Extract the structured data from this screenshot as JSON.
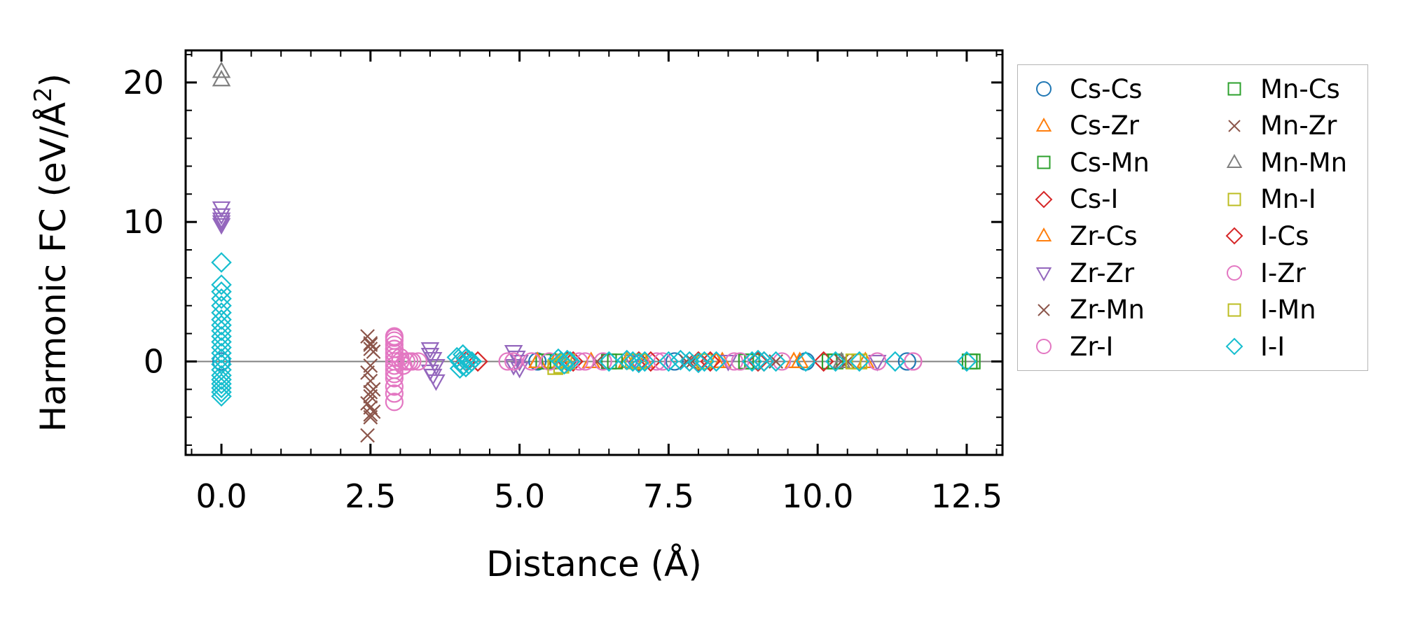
{
  "chart_data": {
    "type": "scatter",
    "title": "",
    "xlabel": "Distance (Å)",
    "ylabel": "Harmonic FC (eV/Å²)",
    "ylabel_main": "Harmonic FC (eV/Å",
    "ylabel_sup": "2",
    "ylabel_end": ")",
    "xlim": [
      -0.6,
      13.1
    ],
    "ylim": [
      -6.7,
      22.3
    ],
    "x_ticks": [
      0.0,
      2.5,
      5.0,
      7.5,
      10.0,
      12.5
    ],
    "x_tick_labels": [
      "0.0",
      "2.5",
      "5.0",
      "7.5",
      "10.0",
      "12.5"
    ],
    "y_ticks": [
      0,
      10,
      20
    ],
    "y_tick_labels": [
      "0",
      "10",
      "20"
    ],
    "zero_line": 0,
    "legend_position": "outside right",
    "series": [
      {
        "name": "Cs-Cs",
        "marker": "circle",
        "color": "#1f77b4",
        "x": [
          0.0,
          5.3,
          7.6,
          9.8,
          11.5
        ],
        "y": [
          0.0,
          0.0,
          0.0,
          0.0,
          0.0
        ]
      },
      {
        "name": "Cs-Zr",
        "marker": "triangle-up",
        "color": "#ff7f0e",
        "x": [
          5.3,
          5.6,
          6.2,
          7.1,
          8.4,
          9.6,
          10.8
        ],
        "y": [
          0.0,
          0.0,
          0.0,
          0.0,
          0.0,
          0.0,
          0.0
        ]
      },
      {
        "name": "Cs-Mn",
        "marker": "square",
        "color": "#2ca02c",
        "x": [
          5.4,
          6.5,
          8.9,
          10.2,
          12.6
        ],
        "y": [
          0.0,
          0.0,
          0.0,
          0.0,
          0.0
        ]
      },
      {
        "name": "Cs-I",
        "marker": "diamond",
        "color": "#d62728",
        "x": [
          4.0,
          4.3,
          5.9,
          7.0,
          8.0,
          9.0,
          10.1
        ],
        "y": [
          0.0,
          0.0,
          0.0,
          0.0,
          0.0,
          0.0,
          0.0
        ]
      },
      {
        "name": "Zr-Cs",
        "marker": "triangle-up",
        "color": "#ff7f0e",
        "x": [
          5.3,
          5.7,
          6.8,
          8.3,
          9.7
        ],
        "y": [
          0.0,
          0.0,
          0.0,
          0.0,
          0.0
        ]
      },
      {
        "name": "Zr-Zr",
        "marker": "triangle-down",
        "color": "#9467bd",
        "x": [
          0.0,
          0.0,
          0.0,
          0.0,
          0.0,
          3.5,
          3.5,
          3.55,
          3.6,
          3.5,
          3.55,
          3.6,
          4.9,
          4.95,
          5.0,
          4.9,
          5.0,
          6.9,
          8.5,
          11.0
        ],
        "y": [
          11.0,
          10.5,
          10.2,
          10.0,
          9.8,
          0.9,
          0.5,
          0.2,
          -0.3,
          -0.7,
          -1.0,
          -1.4,
          0.7,
          0.3,
          0.0,
          -0.3,
          -0.5,
          0.0,
          0.0,
          0.0
        ]
      },
      {
        "name": "Zr-Mn",
        "marker": "x",
        "color": "#8c564b",
        "x": [
          2.45,
          2.5,
          2.55,
          2.5,
          2.45,
          2.5,
          2.55,
          2.5,
          2.45,
          2.5,
          2.55,
          2.5,
          2.45,
          2.5,
          6.3,
          7.9,
          10.4
        ],
        "y": [
          1.8,
          1.2,
          0.7,
          -0.3,
          -0.8,
          -1.4,
          -2.0,
          -2.5,
          -3.0,
          -3.3,
          -3.6,
          -4.0,
          -5.3,
          0.9,
          0.0,
          0.0,
          0.0
        ]
      },
      {
        "name": "Zr-I",
        "marker": "circle",
        "color": "#e377c2",
        "x": [
          2.9,
          2.9,
          2.9,
          2.9,
          2.9,
          2.9,
          2.9,
          2.9,
          2.9,
          2.9,
          2.9,
          2.9,
          3.0,
          3.1,
          3.2,
          3.3,
          4.8,
          5.2,
          6.0,
          6.4,
          7.3,
          8.6,
          9.4,
          11.0,
          11.6
        ],
        "y": [
          1.8,
          1.5,
          1.2,
          0.9,
          0.6,
          0.3,
          0.0,
          -0.3,
          -0.6,
          -1.2,
          -1.8,
          -2.9,
          0.0,
          0.0,
          0.0,
          0.0,
          0.0,
          0.0,
          0.0,
          0.0,
          0.0,
          0.0,
          0.0,
          0.0,
          0.0
        ]
      },
      {
        "name": "Mn-Cs",
        "marker": "square",
        "color": "#2ca02c",
        "x": [
          5.5,
          6.6,
          8.8,
          10.3,
          12.55
        ],
        "y": [
          0.0,
          0.0,
          0.0,
          0.0,
          0.0
        ]
      },
      {
        "name": "Mn-Zr",
        "marker": "x",
        "color": "#8c564b",
        "x": [
          2.5,
          2.5,
          2.5,
          7.8,
          9.3,
          10.5
        ],
        "y": [
          1.3,
          -2.2,
          -3.8,
          0.0,
          0.0,
          0.0
        ]
      },
      {
        "name": "Mn-Mn",
        "marker": "triangle-up",
        "color": "#7f7f7f",
        "x": [
          0.0,
          0.0,
          10.4
        ],
        "y": [
          20.8,
          20.2,
          0.0
        ]
      },
      {
        "name": "Mn-I",
        "marker": "square",
        "color": "#bcbd22",
        "x": [
          5.7,
          5.8,
          6.9,
          8.1,
          10.6
        ],
        "y": [
          -0.3,
          0.0,
          0.0,
          0.0,
          0.0
        ]
      },
      {
        "name": "I-Cs",
        "marker": "diamond",
        "color": "#d62728",
        "x": [
          4.1,
          5.8,
          7.2,
          8.2,
          9.1
        ],
        "y": [
          0.0,
          0.0,
          0.0,
          0.0,
          0.0
        ]
      },
      {
        "name": "I-Zr",
        "marker": "circle",
        "color": "#e377c2",
        "x": [
          2.9,
          2.9,
          2.9,
          2.9,
          3.0,
          3.05,
          3.15,
          4.9,
          5.5,
          6.1,
          7.4,
          8.7,
          11.6
        ],
        "y": [
          1.7,
          0.9,
          -0.9,
          -2.3,
          0.3,
          -0.3,
          0.0,
          0.0,
          0.0,
          0.0,
          0.0,
          0.0,
          0.0
        ]
      },
      {
        "name": "I-Mn",
        "marker": "square",
        "color": "#bcbd22",
        "x": [
          5.6,
          5.75,
          7.0,
          10.7
        ],
        "y": [
          -0.4,
          0.0,
          0.0,
          0.0
        ]
      },
      {
        "name": "I-I",
        "marker": "diamond",
        "color": "#17becf",
        "x": [
          0.0,
          0.0,
          0.0,
          0.0,
          0.0,
          0.0,
          0.0,
          0.0,
          0.0,
          0.0,
          0.0,
          0.0,
          0.0,
          0.0,
          0.0,
          0.0,
          0.0,
          0.0,
          0.0,
          0.0,
          0.0,
          0.0,
          3.95,
          4.0,
          4.05,
          4.1,
          4.15,
          4.2,
          4.0,
          4.05,
          4.1,
          4.15,
          5.65,
          5.7,
          5.75,
          5.8,
          5.85,
          6.5,
          6.8,
          6.9,
          7.0,
          7.1,
          7.5,
          7.7,
          7.85,
          8.0,
          8.1,
          8.3,
          8.9,
          9.0,
          9.1,
          9.3,
          9.8,
          10.3,
          10.7,
          11.3,
          12.5
        ],
        "y": [
          7.1,
          5.5,
          5.0,
          4.5,
          4.0,
          3.5,
          3.0,
          2.6,
          2.2,
          1.8,
          1.4,
          1.0,
          0.6,
          0.2,
          -0.2,
          -0.6,
          -1.0,
          -1.3,
          -1.6,
          -1.9,
          -2.2,
          -2.5,
          0.3,
          0.0,
          -0.3,
          0.2,
          -0.2,
          0.0,
          -0.5,
          0.5,
          -0.4,
          0.1,
          0.2,
          0.0,
          -0.2,
          0.1,
          0.0,
          0.0,
          0.1,
          0.0,
          -0.1,
          0.0,
          0.0,
          0.1,
          0.0,
          -0.1,
          0.0,
          0.0,
          0.0,
          0.1,
          0.0,
          0.0,
          0.0,
          0.0,
          0.0,
          0.0,
          0.0
        ]
      }
    ]
  }
}
